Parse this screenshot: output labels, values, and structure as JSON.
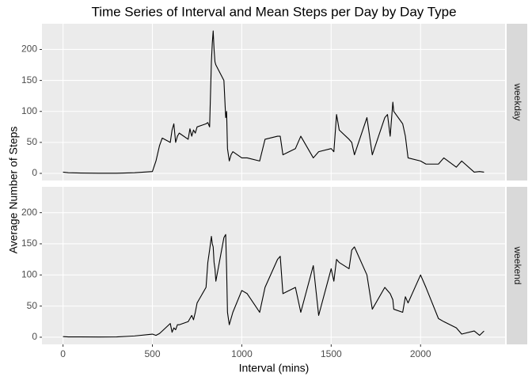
{
  "chart_data": {
    "type": "line",
    "title": "Time Series of Interval and Mean Steps per Day by Day Type",
    "x_label": "Interval (mins)",
    "y_label": "Average Number of Steps",
    "xlim": [
      -117.75,
      2472.75
    ],
    "ylim": [
      -11.5,
      241.5
    ],
    "xticks": [
      0,
      500,
      1000,
      1500,
      2000
    ],
    "yticks": [
      0,
      50,
      100,
      150,
      200
    ],
    "grid": true,
    "x": [
      0,
      30,
      100,
      200,
      300,
      400,
      500,
      520,
      540,
      555,
      600,
      610,
      620,
      630,
      640,
      650,
      700,
      710,
      720,
      730,
      740,
      750,
      800,
      810,
      820,
      830,
      835,
      840,
      845,
      850,
      855,
      900,
      910,
      915,
      920,
      930,
      940,
      950,
      1000,
      1030,
      1100,
      1130,
      1200,
      1215,
      1230,
      1300,
      1330,
      1400,
      1430,
      1500,
      1515,
      1530,
      1545,
      1600,
      1615,
      1630,
      1700,
      1730,
      1800,
      1815,
      1830,
      1845,
      1850,
      1900,
      1915,
      1930,
      2000,
      2030,
      2100,
      2130,
      2200,
      2230,
      2300,
      2330,
      2355
    ],
    "series": [
      {
        "name": "weekday",
        "color": "#000000",
        "values": [
          2,
          1,
          0.5,
          0.3,
          0.2,
          1,
          3,
          20,
          45,
          57,
          50,
          70,
          80,
          50,
          60,
          65,
          55,
          72,
          60,
          70,
          65,
          75,
          80,
          82,
          75,
          180,
          210,
          230,
          200,
          180,
          175,
          150,
          90,
          100,
          40,
          20,
          30,
          35,
          25,
          25,
          20,
          55,
          60,
          60,
          30,
          40,
          60,
          25,
          35,
          40,
          35,
          95,
          70,
          55,
          50,
          30,
          90,
          30,
          90,
          95,
          60,
          115,
          100,
          80,
          60,
          25,
          20,
          15,
          15,
          25,
          10,
          20,
          2,
          3,
          2
        ]
      },
      {
        "name": "weekend",
        "color": "#000000",
        "values": [
          1,
          0.5,
          0.5,
          0.3,
          0.5,
          2,
          5,
          3,
          6,
          10,
          22,
          8,
          15,
          12,
          20,
          20,
          25,
          30,
          35,
          28,
          40,
          55,
          80,
          120,
          140,
          162,
          150,
          145,
          120,
          110,
          90,
          160,
          165,
          110,
          40,
          20,
          30,
          40,
          75,
          70,
          40,
          80,
          125,
          130,
          70,
          80,
          40,
          115,
          35,
          110,
          90,
          125,
          120,
          110,
          140,
          145,
          100,
          45,
          80,
          75,
          70,
          60,
          45,
          40,
          65,
          55,
          100,
          80,
          30,
          25,
          15,
          5,
          10,
          3,
          10
        ]
      }
    ]
  }
}
